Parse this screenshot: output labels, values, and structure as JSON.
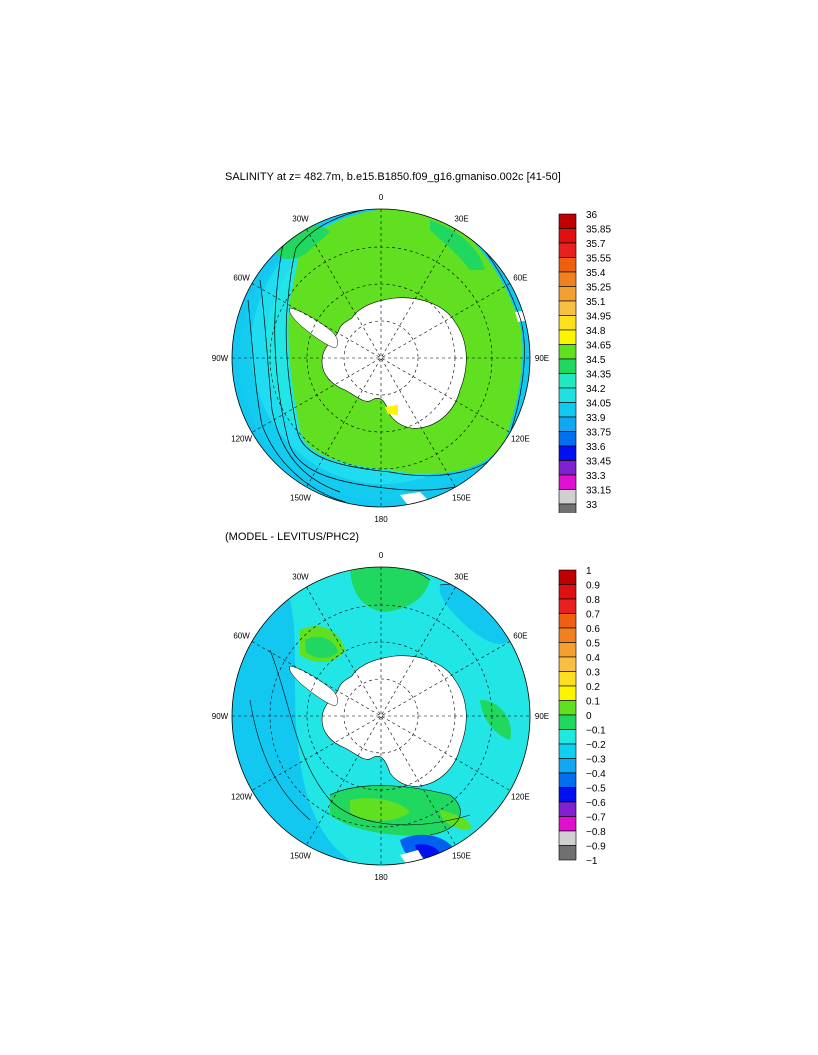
{
  "panels": [
    {
      "title": "SALINITY at z= 482.7m, b.e15.B1850.f09_g16.gmaniso.002c [41-50]",
      "lon_labels": [
        "0",
        "30E",
        "60E",
        "90E",
        "120E",
        "150E",
        "180",
        "150W",
        "120W",
        "90W",
        "60W",
        "30W"
      ],
      "colorbar": {
        "labels": [
          "36",
          "35.85",
          "35.7",
          "35.55",
          "35.4",
          "35.25",
          "35.1",
          "34.95",
          "34.8",
          "34.65",
          "34.5",
          "34.35",
          "34.2",
          "34.05",
          "33.9",
          "33.75",
          "33.6",
          "33.45",
          "33.3",
          "33.15",
          "33"
        ],
        "colors": [
          "#c00000",
          "#e01010",
          "#e82020",
          "#ee6010",
          "#f08020",
          "#f4a030",
          "#f8c040",
          "#fce020",
          "#fcf400",
          "#60e020",
          "#20d860",
          "#20e8c0",
          "#20e0e0",
          "#10c8f0",
          "#10a8f0",
          "#0070f0",
          "#0010f0",
          "#8020d0",
          "#e010d0",
          "#d0d0d0",
          "#707070"
        ]
      },
      "regions": [
        "Antarctica",
        "Southern Ocean"
      ]
    },
    {
      "title": "(MODEL - LEVITUS/PHC2)",
      "lon_labels": [
        "0",
        "30E",
        "60E",
        "90E",
        "120E",
        "150E",
        "180",
        "150W",
        "120W",
        "90W",
        "60W",
        "30W"
      ],
      "colorbar": {
        "labels": [
          "1",
          "0.9",
          "0.8",
          "0.7",
          "0.6",
          "0.5",
          "0.4",
          "0.3",
          "0.2",
          "0.1",
          "0",
          "−0.1",
          "−0.2",
          "−0.3",
          "−0.4",
          "−0.5",
          "−0.6",
          "−0.7",
          "−0.8",
          "−0.9",
          "−1"
        ],
        "colors": [
          "#c00000",
          "#e01010",
          "#e82020",
          "#ee6010",
          "#f08020",
          "#f4a030",
          "#f8c040",
          "#fce020",
          "#fcf400",
          "#60e020",
          "#20d860",
          "#20e8e0",
          "#10d0f0",
          "#10a8f0",
          "#0070f0",
          "#0010f0",
          "#8020d0",
          "#e010d0",
          "#d0d0d0",
          "#707070"
        ]
      },
      "regions": [
        "Antarctica",
        "Southern Ocean"
      ]
    }
  ]
}
